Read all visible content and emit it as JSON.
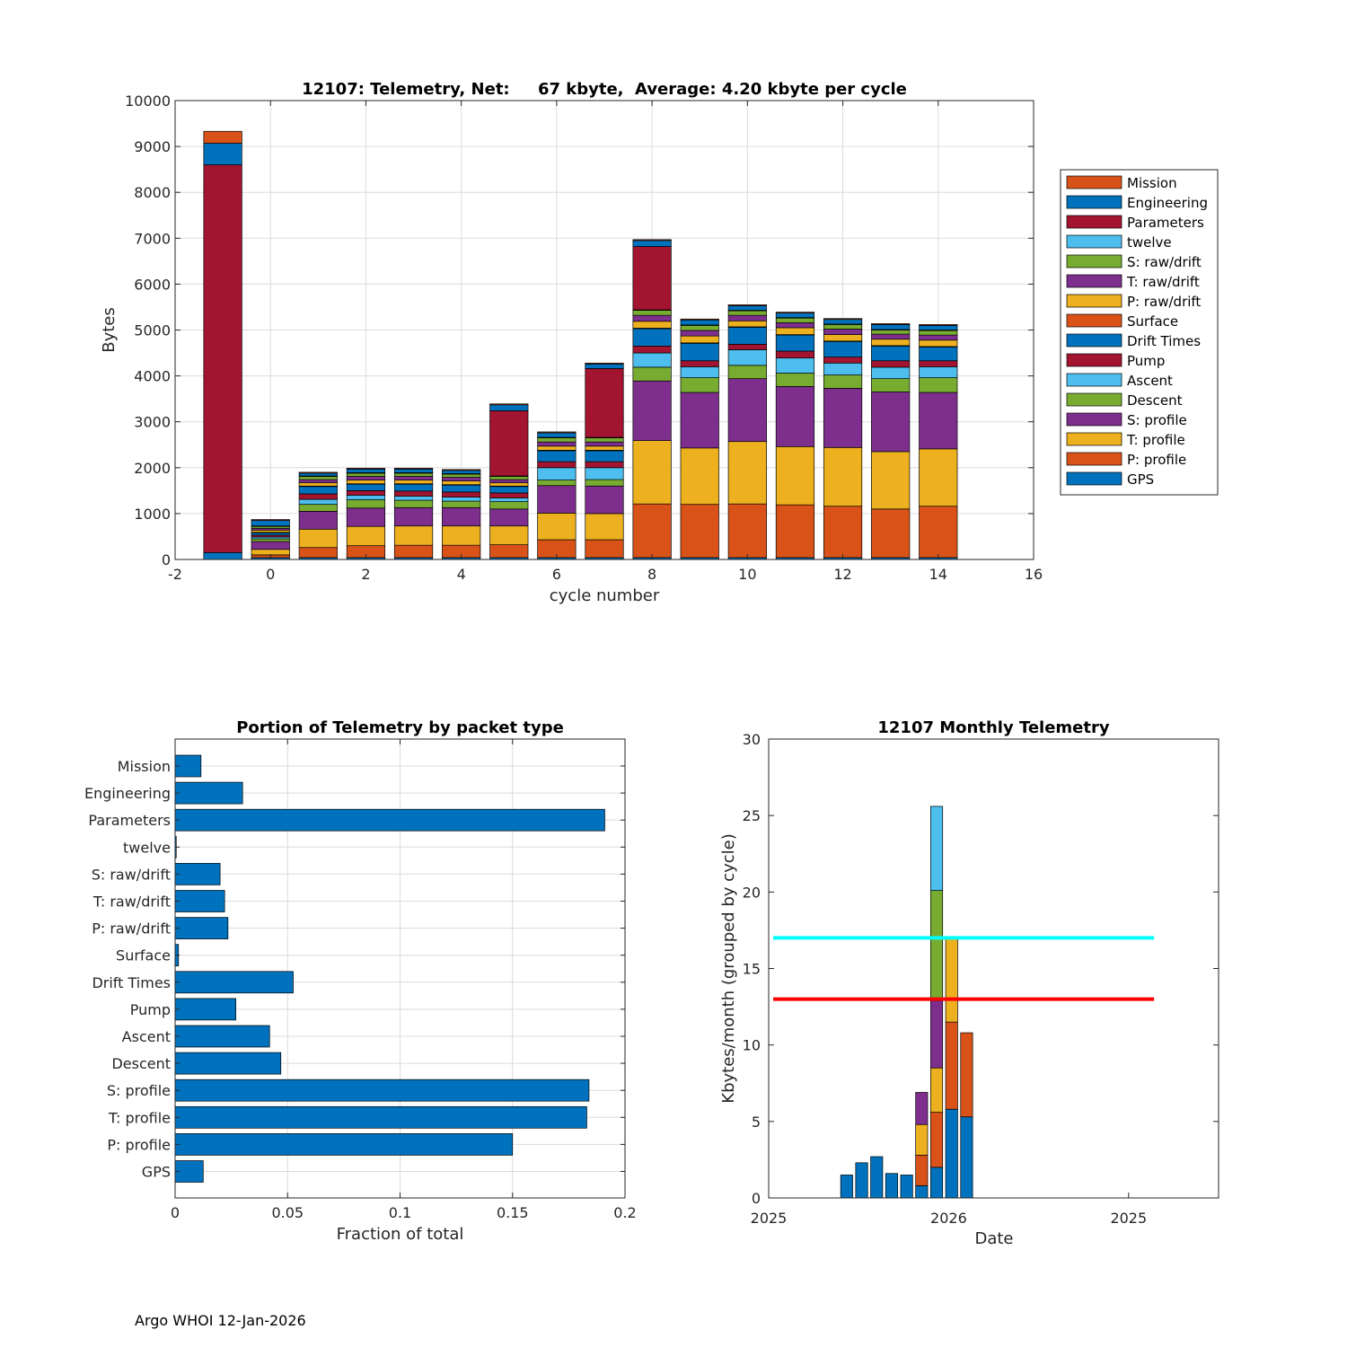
{
  "footer": "Argo WHOI 12-Jan-2026",
  "chart_data": [
    {
      "type": "bar",
      "stacked": true,
      "title": "12107: Telemetry, Net:     67 kbyte,  Average: 4.20 kbyte per cycle",
      "xlabel": "cycle number",
      "ylabel": "Bytes",
      "xlim": [
        -2,
        16
      ],
      "ylim": [
        0,
        10000
      ],
      "xticks": [
        -2,
        0,
        2,
        4,
        6,
        8,
        10,
        12,
        14,
        16
      ],
      "yticks": [
        0,
        1000,
        2000,
        3000,
        4000,
        5000,
        6000,
        7000,
        8000,
        9000,
        10000
      ],
      "legend_position": "outside-right",
      "legend_order": [
        "Mission",
        "Engineering",
        "Parameters",
        "twelve",
        "S: raw/drift",
        "T: raw/drift",
        "P: raw/drift",
        "Surface",
        "Drift Times",
        "Pump",
        "Ascent",
        "Descent",
        "S: profile",
        "T: profile",
        "P: profile",
        "GPS"
      ],
      "colors": {
        "GPS": "#0072BD",
        "P: profile": "#D95319",
        "T: profile": "#EDB120",
        "S: profile": "#7E2F8E",
        "Descent": "#77AC30",
        "Ascent": "#4DBEEE",
        "Pump": "#A2142F",
        "Drift Times": "#0072BD",
        "Surface": "#D95319",
        "P: raw/drift": "#EDB120",
        "T: raw/drift": "#7E2F8E",
        "S: raw/drift": "#77AC30",
        "twelve": "#4DBEEE",
        "Parameters": "#A2142F",
        "Engineering": "#0072BD",
        "Mission": "#D95319"
      },
      "stack_order": [
        "GPS",
        "P: profile",
        "T: profile",
        "S: profile",
        "Descent",
        "Ascent",
        "Pump",
        "Drift Times",
        "Surface",
        "P: raw/drift",
        "T: raw/drift",
        "S: raw/drift",
        "twelve",
        "Parameters",
        "Engineering",
        "Mission"
      ],
      "x": [
        -1,
        0,
        1,
        2,
        3,
        4,
        5,
        6,
        7,
        8,
        9,
        10,
        11,
        12,
        13,
        14
      ],
      "series": [
        {
          "name": "GPS",
          "values": [
            150,
            40,
            40,
            40,
            40,
            40,
            40,
            40,
            40,
            40,
            40,
            40,
            40,
            40,
            40,
            40
          ]
        },
        {
          "name": "P: profile",
          "values": [
            0,
            60,
            220,
            260,
            270,
            270,
            280,
            390,
            390,
            1170,
            1160,
            1170,
            1150,
            1120,
            1060,
            1120
          ]
        },
        {
          "name": "T: profile",
          "values": [
            0,
            120,
            400,
            420,
            420,
            420,
            410,
            580,
            570,
            1380,
            1230,
            1360,
            1270,
            1280,
            1250,
            1250
          ]
        },
        {
          "name": "S: profile",
          "values": [
            0,
            170,
            390,
            400,
            400,
            400,
            370,
            600,
            600,
            1300,
            1210,
            1370,
            1310,
            1290,
            1300,
            1230
          ]
        },
        {
          "name": "Descent",
          "values": [
            0,
            60,
            150,
            180,
            160,
            140,
            160,
            120,
            140,
            300,
            320,
            290,
            290,
            290,
            290,
            320
          ]
        },
        {
          "name": "Ascent",
          "values": [
            0,
            40,
            110,
            100,
            90,
            90,
            80,
            270,
            260,
            310,
            240,
            340,
            330,
            260,
            250,
            240
          ]
        },
        {
          "name": "Pump",
          "values": [
            0,
            40,
            120,
            100,
            110,
            110,
            110,
            130,
            130,
            150,
            130,
            120,
            150,
            130,
            140,
            130
          ]
        },
        {
          "name": "Drift Times",
          "values": [
            0,
            50,
            160,
            140,
            150,
            150,
            140,
            240,
            240,
            380,
            380,
            370,
            350,
            340,
            320,
            300
          ]
        },
        {
          "name": "Surface",
          "values": [
            0,
            10,
            10,
            10,
            10,
            10,
            10,
            10,
            10,
            10,
            10,
            10,
            10,
            10,
            10,
            10
          ]
        },
        {
          "name": "P: raw/drift",
          "values": [
            0,
            50,
            70,
            80,
            80,
            80,
            70,
            90,
            90,
            150,
            150,
            130,
            150,
            140,
            140,
            140
          ]
        },
        {
          "name": "T: raw/drift",
          "values": [
            0,
            40,
            70,
            80,
            80,
            80,
            70,
            90,
            90,
            130,
            120,
            120,
            110,
            120,
            110,
            110
          ]
        },
        {
          "name": "S: raw/drift",
          "values": [
            0,
            40,
            70,
            70,
            70,
            70,
            70,
            90,
            90,
            110,
            110,
            100,
            100,
            100,
            90,
            100
          ]
        },
        {
          "name": "twelve",
          "values": [
            0,
            10,
            10,
            10,
            10,
            10,
            10,
            10,
            10,
            10,
            10,
            10,
            10,
            10,
            10,
            10
          ]
        },
        {
          "name": "Parameters",
          "values": [
            8450,
            0,
            0,
            0,
            0,
            0,
            1420,
            0,
            1500,
            1380,
            0,
            0,
            0,
            0,
            0,
            0
          ]
        },
        {
          "name": "Engineering",
          "values": [
            470,
            120,
            60,
            80,
            80,
            70,
            130,
            100,
            100,
            130,
            110,
            100,
            100,
            100,
            110,
            100
          ]
        },
        {
          "name": "Mission",
          "values": [
            260,
            20,
            20,
            20,
            20,
            20,
            20,
            20,
            20,
            20,
            20,
            20,
            20,
            20,
            20,
            20
          ]
        }
      ]
    },
    {
      "type": "bar",
      "orientation": "horizontal",
      "title": "Portion of Telemetry by packet type",
      "xlabel": "Fraction of total",
      "ylabel": "",
      "xlim": [
        0,
        0.2
      ],
      "xticks": [
        0,
        0.05,
        0.1,
        0.15,
        0.2
      ],
      "xticklabels": [
        "0",
        "0.05",
        "0.1",
        "0.15",
        "0.2"
      ],
      "color": "#0072BD",
      "categories": [
        "Mission",
        "Engineering",
        "Parameters",
        "twelve",
        "S: raw/drift",
        "T: raw/drift",
        "P: raw/drift",
        "Surface",
        "Drift Times",
        "Pump",
        "Ascent",
        "Descent",
        "S: profile",
        "T: profile",
        "P: profile",
        "GPS"
      ],
      "values": [
        0.0115,
        0.03,
        0.191,
        0.0005,
        0.02,
        0.022,
        0.0235,
        0.0015,
        0.0525,
        0.027,
        0.042,
        0.047,
        0.184,
        0.183,
        0.15,
        0.0125
      ]
    },
    {
      "type": "bar",
      "stacked": true,
      "title": "12107 Monthly Telemetry",
      "xlabel": "Date",
      "ylabel": "Kbytes/month (grouped by cycle)",
      "ylim": [
        0,
        30
      ],
      "yticks": [
        0,
        5,
        10,
        15,
        20,
        25,
        30
      ],
      "xlim": [
        0,
        30
      ],
      "xticks": [
        0,
        12,
        24
      ],
      "xticklabels": [
        "2025",
        "2026",
        "2025"
      ],
      "bar_positions": [
        5.2,
        6.2,
        7.2,
        8.2,
        9.2,
        10.2,
        11.2,
        12.2,
        13.2
      ],
      "segment_colors": [
        "#0072BD",
        "#D95319",
        "#EDB120",
        "#7E2F8E",
        "#77AC30",
        "#4DBEEE"
      ],
      "segments": [
        [
          1.5
        ],
        [
          2.3
        ],
        [
          2.7
        ],
        [
          1.6
        ],
        [
          1.5
        ],
        [
          0.8,
          2.0,
          2.0,
          2.1
        ],
        [
          2.0,
          3.6,
          2.9,
          4.4,
          7.2,
          5.5
        ],
        [
          5.8,
          5.7,
          5.5
        ],
        [
          5.3,
          5.5
        ]
      ],
      "reference_lines": [
        {
          "label": "cyan limit",
          "y": 17,
          "x_range": [
            0.3,
            25.7
          ],
          "color": "#00FFFF"
        },
        {
          "label": "red limit",
          "y": 13,
          "x_range": [
            0.3,
            25.7
          ],
          "color": "#FF0000"
        }
      ]
    }
  ]
}
